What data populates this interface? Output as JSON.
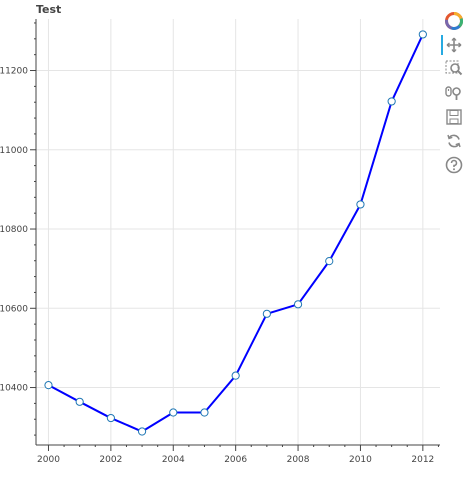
{
  "chart_data": {
    "type": "line",
    "title": "Test",
    "x": [
      2000,
      2001,
      2002,
      2003,
      2004,
      2005,
      2006,
      2007,
      2008,
      2009,
      2010,
      2011,
      2012
    ],
    "y": [
      10406,
      10364,
      10323,
      10289,
      10337,
      10337,
      10430,
      10586,
      10610,
      10719,
      10862,
      11122,
      11291
    ],
    "xlim": [
      1999.6,
      2012.55
    ],
    "ylim": [
      10255,
      11330
    ],
    "xticks": [
      2000,
      2002,
      2004,
      2006,
      2008,
      2010,
      2012
    ],
    "yticks": [
      10400,
      10600,
      10800,
      11000,
      11200
    ],
    "line_color": "#0000ff",
    "marker_fill": "#ffffff",
    "marker_stroke": "#1f77b4",
    "grid": true
  },
  "toolbar": {
    "tools": [
      "bokeh-logo-icon",
      "pan-icon",
      "box-zoom-icon",
      "wheel-zoom-icon",
      "save-icon",
      "reset-icon",
      "help-icon"
    ]
  }
}
